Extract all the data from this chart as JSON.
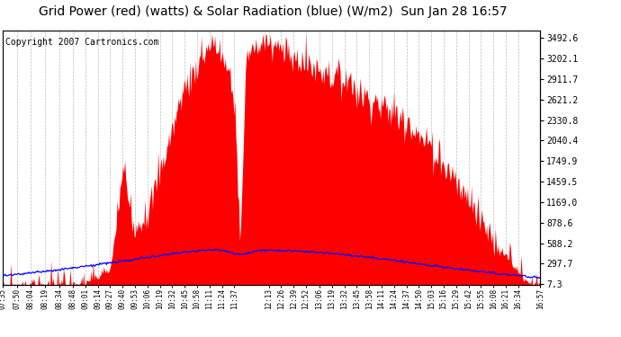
{
  "title": "Grid Power (red) (watts) & Solar Radiation (blue) (W/m2)  Sun Jan 28 16:57",
  "copyright": "Copyright 2007 Cartronics.com",
  "bg_color": "#ffffff",
  "plot_bg_color": "#ffffff",
  "grid_color": "#bbbbbb",
  "yticks": [
    7.3,
    297.7,
    588.2,
    878.6,
    1169.0,
    1459.5,
    1749.9,
    2040.4,
    2330.8,
    2621.2,
    2911.7,
    3202.1,
    3492.6
  ],
  "ymax": 3600,
  "ymin": 0,
  "xtick_labels": [
    "07:35",
    "07:50",
    "08:04",
    "08:19",
    "08:34",
    "08:48",
    "09:01",
    "09:14",
    "09:27",
    "09:40",
    "09:53",
    "10:06",
    "10:19",
    "10:32",
    "10:45",
    "10:58",
    "11:11",
    "11:24",
    "11:37",
    "12:13",
    "12:26",
    "12:39",
    "12:52",
    "13:06",
    "13:19",
    "13:32",
    "13:45",
    "13:58",
    "14:11",
    "14:24",
    "14:37",
    "14:50",
    "15:03",
    "15:16",
    "15:29",
    "15:42",
    "15:55",
    "16:08",
    "16:21",
    "16:34",
    "16:57"
  ],
  "red_fill_color": "#ff0000",
  "blue_line_color": "#0000ff",
  "title_fontsize": 10,
  "copyright_fontsize": 7
}
